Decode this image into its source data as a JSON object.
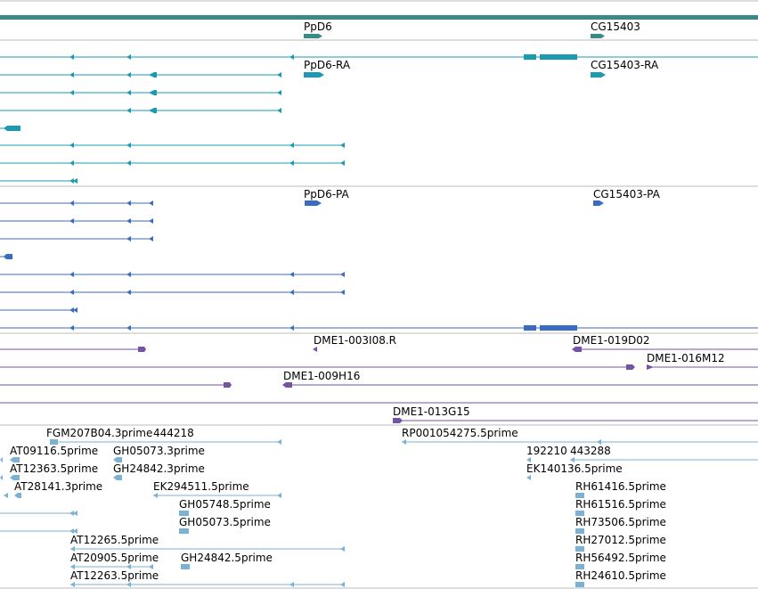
{
  "colors": {
    "gene": "#3a8a8a",
    "gene_transcript": "#1b9bb2",
    "protein": "#3b6cc3",
    "clone": "#7453a6",
    "est": "#7ab2d6",
    "divider": "#bbbbbb"
  },
  "tracks": {
    "genes": {
      "labels": [
        "PpD6",
        "CG15403"
      ]
    },
    "transcripts": {
      "labels": [
        "PpD6-RA",
        "CG15403-RA"
      ]
    },
    "proteins": {
      "labels": [
        "PpD6-PA",
        "CG15403-PA"
      ]
    },
    "clones": {
      "labels": [
        "DME1-003I08.R",
        "DME1-019D02",
        "DME1-016M12",
        "DME1-009H16",
        "DME1-013G15"
      ]
    },
    "ests": {
      "labels": [
        "FGM207B04.3prime",
        "444218",
        "RP001054275.5prime",
        "AT09116.5prime",
        "GH05073.3prime",
        "192210",
        "443288",
        "AT12363.5prime",
        "GH24842.3prime",
        "EK140136.5prime",
        "AT28141.3prime",
        "EK294511.5prime",
        "RH61416.5prime",
        "GH05748.5prime",
        "RH61516.5prime",
        "GH05073.5prime",
        "RH73506.5prime",
        "AT12265.5prime",
        "RH27012.5prime",
        "AT20905.5prime",
        "GH24842.5prime",
        "RH56492.5prime",
        "AT12263.5prime",
        "RH24610.5prime"
      ]
    }
  }
}
